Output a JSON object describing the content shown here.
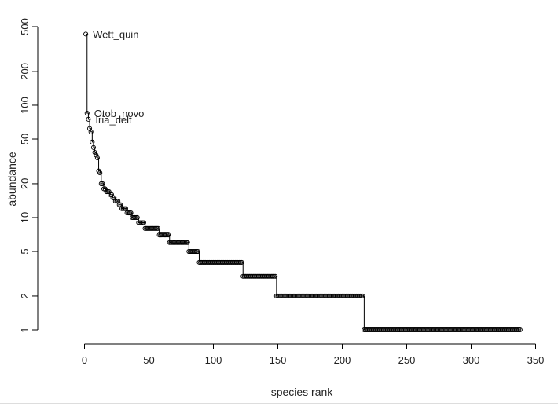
{
  "chart_data": {
    "type": "scatter",
    "style": "step line with open circle markers",
    "xlabel": "species rank",
    "ylabel": "abundance",
    "y_scale": "log",
    "xlim": [
      0,
      350
    ],
    "ylim": [
      1,
      500
    ],
    "x_ticks": [
      0,
      50,
      100,
      150,
      200,
      250,
      300,
      350
    ],
    "y_ticks": [
      1,
      2,
      5,
      10,
      20,
      50,
      100,
      200,
      500
    ],
    "grid": false,
    "colors": {
      "line": "#000000",
      "marker": "#000000",
      "background": "#ffffff"
    },
    "annotations": [
      {
        "text": "Wett_quin",
        "rank": 1,
        "abundance": 430
      },
      {
        "text": "Otob_novo",
        "rank": 2,
        "abundance": 85
      },
      {
        "text": "Iria_delt",
        "rank": 3,
        "abundance": 75
      }
    ],
    "series": [
      {
        "ranks_abundances": [
          [
            1,
            430
          ],
          [
            2,
            85
          ],
          [
            3,
            75
          ],
          [
            4,
            62
          ],
          [
            5,
            58
          ],
          [
            6,
            47
          ],
          [
            7,
            42
          ],
          [
            8,
            38
          ],
          [
            9,
            36
          ],
          [
            10,
            34
          ],
          [
            11,
            26
          ],
          [
            12,
            25
          ],
          [
            13,
            20
          ],
          [
            14,
            20
          ],
          [
            15,
            18
          ],
          [
            16,
            18
          ],
          [
            17,
            17
          ],
          [
            18,
            17
          ],
          [
            19,
            17
          ],
          [
            20,
            16
          ],
          [
            21,
            16
          ],
          [
            22,
            15
          ],
          [
            23,
            15
          ],
          [
            24,
            14
          ],
          [
            25,
            14
          ],
          [
            26,
            14
          ],
          [
            27,
            13
          ],
          [
            28,
            13
          ],
          [
            29,
            12
          ],
          [
            30,
            12
          ],
          [
            31,
            12
          ],
          [
            32,
            12
          ],
          [
            33,
            11
          ],
          [
            34,
            11
          ],
          [
            35,
            11
          ],
          [
            36,
            11
          ],
          [
            37,
            10
          ],
          [
            38,
            10
          ],
          [
            39,
            10
          ],
          [
            40,
            10
          ],
          [
            41,
            10
          ],
          [
            42,
            9
          ],
          [
            43,
            9
          ],
          [
            44,
            9
          ],
          [
            45,
            9
          ],
          [
            46,
            9
          ],
          [
            47,
            8
          ],
          [
            48,
            8
          ]
        ],
        "steps": [
          {
            "abundance": 8,
            "from_rank": 49,
            "to_rank": 57
          },
          {
            "abundance": 7,
            "from_rank": 58,
            "to_rank": 65
          },
          {
            "abundance": 6,
            "from_rank": 66,
            "to_rank": 80
          },
          {
            "abundance": 5,
            "from_rank": 81,
            "to_rank": 88
          },
          {
            "abundance": 4,
            "from_rank": 89,
            "to_rank": 122
          },
          {
            "abundance": 3,
            "from_rank": 123,
            "to_rank": 148
          },
          {
            "abundance": 2,
            "from_rank": 149,
            "to_rank": 216
          },
          {
            "abundance": 1,
            "from_rank": 217,
            "to_rank": 338
          }
        ]
      }
    ]
  }
}
